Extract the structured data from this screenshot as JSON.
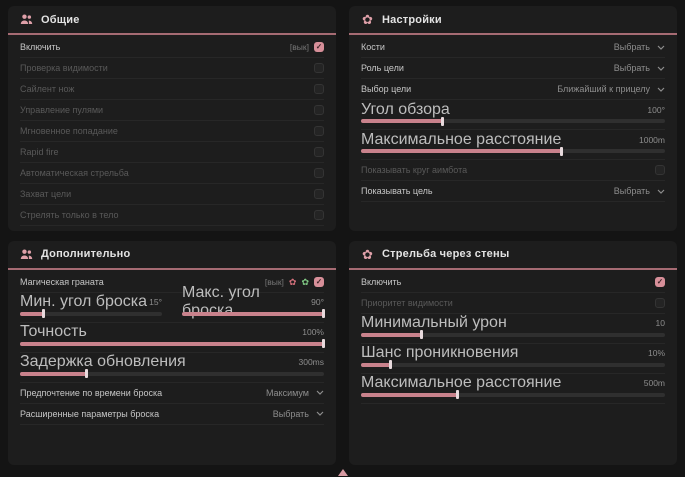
{
  "colors": {
    "accent_pink": "#d78f99",
    "header_line": "#a66b73",
    "slider_fill": "#c9828c",
    "panel_bg": "#1d1d1d",
    "page_bg": "#141414",
    "icon_pink": "#dfa0a9",
    "icon_green": "#7fc783",
    "icon_red": "#d4707b"
  },
  "panels": {
    "general": {
      "title": "Общие",
      "icon": "users-icon",
      "enable": {
        "label": "Включить",
        "tag": "[вык]",
        "checked": true
      },
      "items": [
        "Проверка видимости",
        "Сайлент нож",
        "Управление пулями",
        "Мгновенное попадание",
        "Rapid fire",
        "Автоматическая стрельба",
        "Захват цели",
        "Стрелять только в тело"
      ]
    },
    "settings": {
      "title": "Настройки",
      "icon": "flower-icon",
      "bones": {
        "label": "Кости",
        "value": "Выбрать"
      },
      "target_role": {
        "label": "Роль цели",
        "value": "Выбрать"
      },
      "target_select": {
        "label": "Выбор цели",
        "value": "Ближайший к прицелу"
      },
      "fov": {
        "label": "Угол обзора",
        "value": "100°",
        "fill": 27
      },
      "max_distance": {
        "label": "Максимальное расстояние",
        "value": "1000m",
        "fill": 66
      },
      "show_aimbot_circle": {
        "label": "Показывать круг аимбота",
        "checked": false,
        "disabled": true
      },
      "show_target": {
        "label": "Показывать цель",
        "value": "Выбрать"
      }
    },
    "additional": {
      "title": "Дополнительно",
      "icon": "users-icon",
      "magic_grenade": {
        "label": "Магическая граната",
        "tag": "[вык]",
        "checked": true,
        "icons": [
          "pink-flower-icon",
          "green-flower-icon"
        ]
      },
      "min_throw": {
        "label": "Мин. угол броска",
        "value": "15°",
        "fill": 17
      },
      "max_throw": {
        "label": "Макс. угол броска",
        "value": "90°",
        "fill": 100
      },
      "accuracy": {
        "label": "Точность",
        "value": "100%",
        "fill": 100
      },
      "update_delay": {
        "label": "Задержка обновления",
        "value": "300ms",
        "fill": 22
      },
      "throw_time_pref": {
        "label": "Предпочтение по времени броска",
        "value": "Максимум"
      },
      "advanced_throw": {
        "label": "Расширенные параметры броска",
        "value": "Выбрать"
      }
    },
    "wallshoot": {
      "title": "Стрельба через стены",
      "icon": "flower-icon",
      "enable": {
        "label": "Включить",
        "checked": true
      },
      "visibility_priority": {
        "label": "Приоритет видимости",
        "checked": false,
        "disabled": true
      },
      "min_damage": {
        "label": "Минимальный урон",
        "value": "10",
        "fill": 20
      },
      "penetration_chance": {
        "label": "Шанс проникновения",
        "value": "10%",
        "fill": 10
      },
      "max_distance": {
        "label": "Максимальное расстояние",
        "value": "500m",
        "fill": 32
      }
    }
  },
  "footer": {
    "scroll_indicator": "up-arrow"
  },
  "glyphs": {
    "check": "✓",
    "flower": "✿"
  }
}
